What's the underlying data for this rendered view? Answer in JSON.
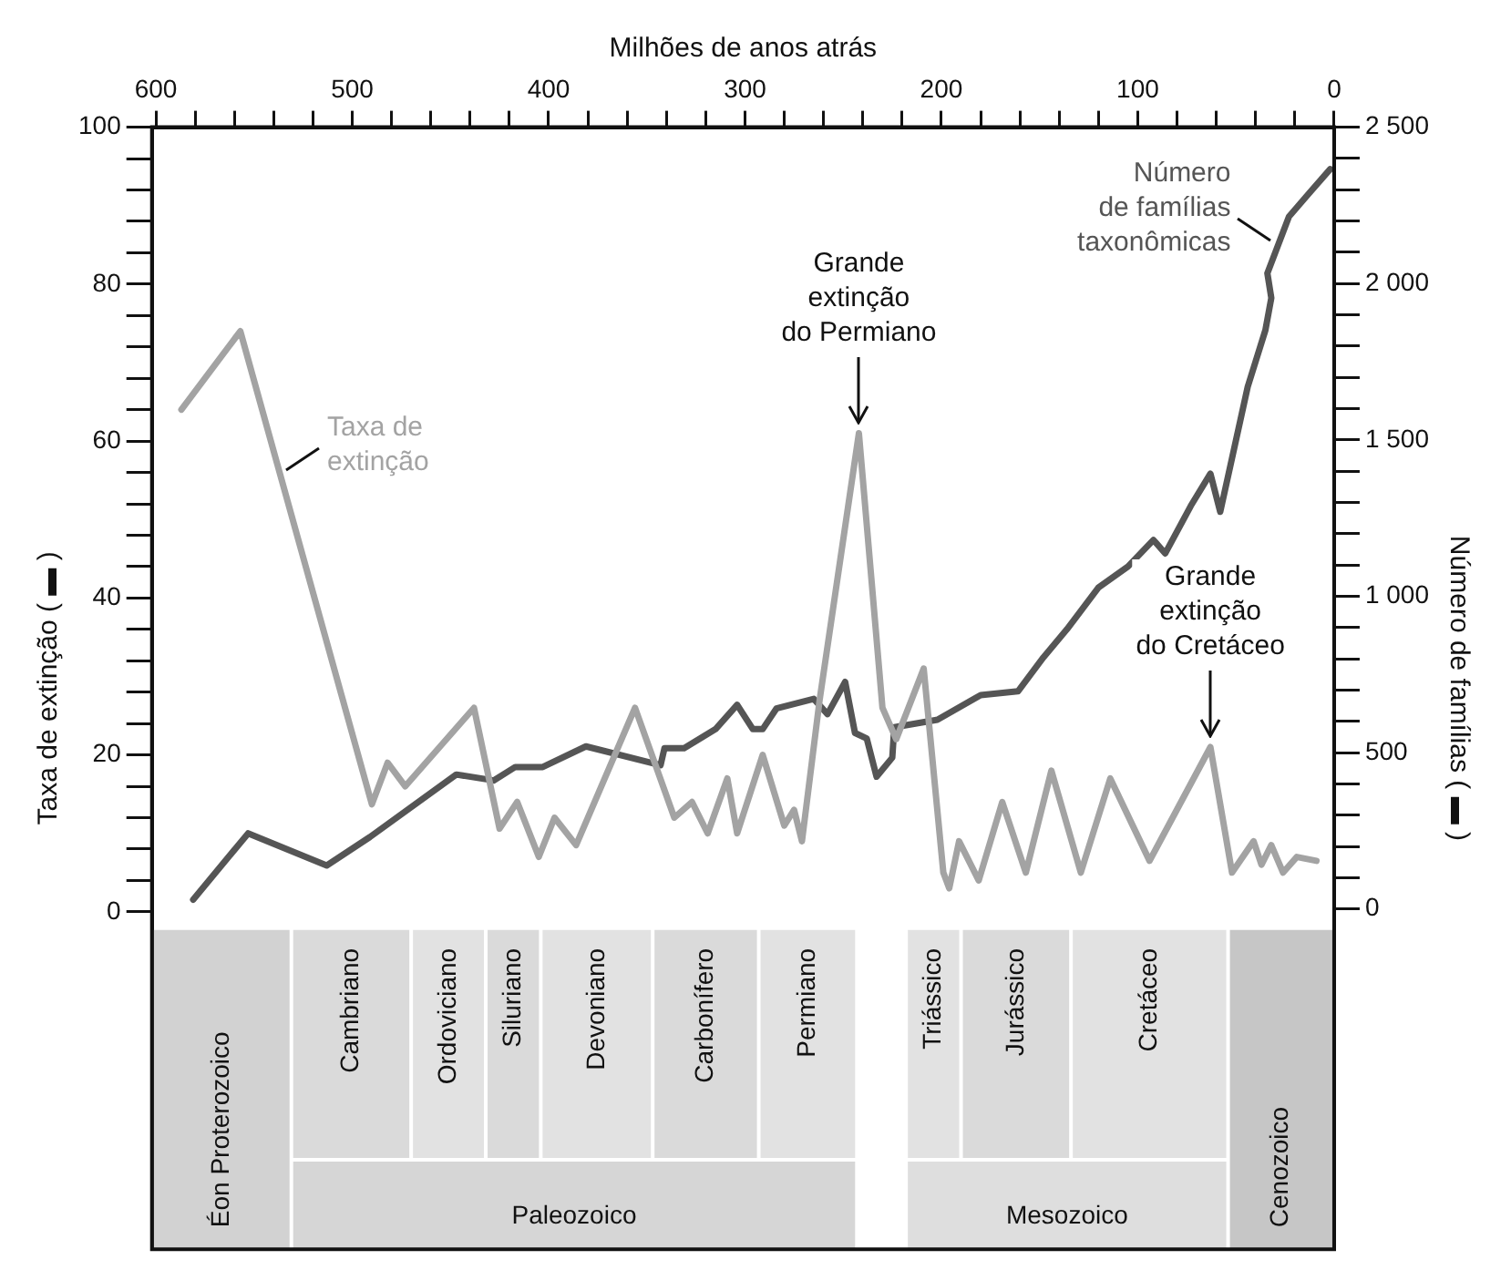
{
  "chart_data": {
    "type": "line",
    "xlabel": "Milhões de anos atrás",
    "ylabel": "Taxa de extinção ( ▬ )",
    "y2label": "Número de famílias ( ▬ )",
    "xlim": [
      602,
      0
    ],
    "xticks": [
      600,
      {
        "value": 580,
        "label": null
      },
      {
        "value": 560,
        "label": null
      },
      {
        "value": 540,
        "label": null
      },
      {
        "value": 520,
        "label": null
      },
      500,
      {
        "value": 480,
        "label": null
      },
      {
        "value": 460,
        "label": null
      },
      {
        "value": 440,
        "label": null
      },
      {
        "value": 420,
        "label": null
      },
      400,
      {
        "value": 380,
        "label": null
      },
      {
        "value": 360,
        "label": null
      },
      {
        "value": 340,
        "label": null
      },
      {
        "value": 320,
        "label": null
      },
      300,
      {
        "value": 280,
        "label": null
      },
      {
        "value": 260,
        "label": null
      },
      {
        "value": 240,
        "label": null
      },
      {
        "value": 220,
        "label": null
      },
      200,
      {
        "value": 180,
        "label": null
      },
      {
        "value": 160,
        "label": null
      },
      {
        "value": 140,
        "label": null
      },
      {
        "value": 120,
        "label": null
      },
      100,
      {
        "value": 80,
        "label": null
      },
      {
        "value": 60,
        "label": null
      },
      {
        "value": 40,
        "label": null
      },
      {
        "value": 20,
        "label": null
      },
      0
    ],
    "ylim": [
      -43,
      100
    ],
    "yticks": [
      0,
      {
        "value": 4,
        "label": null
      },
      {
        "value": 8,
        "label": null
      },
      {
        "value": 12,
        "label": null
      },
      {
        "value": 16,
        "label": null
      },
      20,
      {
        "value": 24,
        "label": null
      },
      {
        "value": 28,
        "label": null
      },
      {
        "value": 32,
        "label": null
      },
      {
        "value": 36,
        "label": null
      },
      40,
      {
        "value": 44,
        "label": null
      },
      {
        "value": 48,
        "label": null
      },
      {
        "value": 52,
        "label": null
      },
      {
        "value": 56,
        "label": null
      },
      60,
      {
        "value": 64,
        "label": null
      },
      {
        "value": 68,
        "label": null
      },
      {
        "value": 72,
        "label": null
      },
      {
        "value": 76,
        "label": null
      },
      80,
      {
        "value": 84,
        "label": null
      },
      {
        "value": 88,
        "label": null
      },
      {
        "value": 92,
        "label": null
      },
      {
        "value": 96,
        "label": null
      },
      100
    ],
    "y2lim": [
      -1088,
      2500
    ],
    "y2ticks": [
      0,
      {
        "value": 100,
        "label": null
      },
      {
        "value": 200,
        "label": null
      },
      {
        "value": 300,
        "label": null
      },
      {
        "value": 400,
        "label": null
      },
      500,
      {
        "value": 600,
        "label": null
      },
      {
        "value": 700,
        "label": null
      },
      {
        "value": 800,
        "label": null
      },
      {
        "value": 900,
        "label": null
      },
      {
        "value": 1000,
        "label": "1 000"
      },
      {
        "value": 1100,
        "label": null
      },
      {
        "value": 1200,
        "label": null
      },
      {
        "value": 1300,
        "label": null
      },
      {
        "value": 1400,
        "label": null
      },
      {
        "value": 1500,
        "label": "1 500"
      },
      {
        "value": 1600,
        "label": null
      },
      {
        "value": 1700,
        "label": null
      },
      {
        "value": 1800,
        "label": null
      },
      {
        "value": 1900,
        "label": null
      },
      {
        "value": 2000,
        "label": "2 000"
      },
      {
        "value": 2100,
        "label": null
      },
      {
        "value": 2200,
        "label": null
      },
      {
        "value": 2300,
        "label": null
      },
      {
        "value": 2400,
        "label": null
      },
      {
        "value": 2500,
        "label": "2 500"
      }
    ],
    "grid": false,
    "legend": false,
    "marker": "none",
    "line_style": "solid",
    "series": [
      {
        "name": "Taxa de extinção",
        "color": "#a3a3a3",
        "x": [
          587,
          557,
          490,
          482,
          473,
          438,
          425,
          416,
          405,
          397,
          386,
          356,
          336,
          327,
          319,
          309,
          304,
          291,
          280,
          275,
          271,
          262,
          242,
          230,
          223,
          209,
          199,
          196,
          191,
          181,
          169,
          157,
          144,
          129,
          114,
          94,
          63,
          52,
          41,
          37,
          32,
          26,
          19,
          9
        ],
        "values": [
          64,
          74,
          13.7,
          19,
          16,
          26,
          10.6,
          14,
          7,
          12,
          8.5,
          26,
          12,
          14,
          10,
          17,
          10,
          20,
          11,
          13,
          9,
          27,
          61,
          26,
          22,
          31,
          5,
          3,
          9,
          4,
          14,
          5,
          18,
          5,
          17,
          6.5,
          21,
          5,
          9,
          6,
          8.5,
          5,
          7,
          6.5
        ]
      },
      {
        "name": "Número de famílias taxonômicas",
        "color": "#555555",
        "axis": "y2",
        "x": [
          581,
          553,
          513,
          491,
          447,
          428,
          417,
          403,
          381,
          343,
          341,
          331,
          315,
          304,
          296,
          291,
          284,
          265,
          258,
          249,
          244,
          238,
          233,
          225,
          224,
          202,
          180,
          161,
          148,
          136,
          120,
          105,
          92,
          86,
          73,
          63,
          58,
          44,
          35,
          32,
          34,
          23,
          13,
          2
        ],
        "values": [
          30,
          242,
          139,
          230,
          430,
          411,
          454,
          454,
          520,
          460,
          514,
          514,
          575,
          653,
          575,
          575,
          641,
          672,
          623,
          726,
          563,
          545,
          423,
          484,
          581,
          605,
          684,
          696,
          805,
          895,
          1028,
          1095,
          1180,
          1137,
          1289,
          1392,
          1270,
          1670,
          1851,
          1954,
          2033,
          2214,
          2287,
          2366
        ]
      }
    ],
    "annotations": [
      {
        "text": "Grande extinção do Permiano",
        "x": 242,
        "y": 61
      },
      {
        "text": "Grande extinção do Cretáceo",
        "x": 63,
        "y": 21
      }
    ],
    "bands": [
      {
        "axis": "x",
        "from": 602,
        "to": 531,
        "label": "Éon Proterozoico",
        "color": "#d2d2d2"
      },
      {
        "axis": "x",
        "from": 531,
        "to": 470,
        "label": "Cambriano",
        "color": "#dadada"
      },
      {
        "axis": "x",
        "from": 470,
        "to": 432,
        "label": "Ordoviciano",
        "color": "#e2e2e2"
      },
      {
        "axis": "x",
        "from": 432,
        "to": 404,
        "label": "Siluriano",
        "color": "#dadada"
      },
      {
        "axis": "x",
        "from": 404,
        "to": 347,
        "label": "Devoniano",
        "color": "#e2e2e2"
      },
      {
        "axis": "x",
        "from": 347,
        "to": 293,
        "label": "Carbonífero",
        "color": "#dadada"
      },
      {
        "axis": "x",
        "from": 293,
        "to": 243,
        "label": "Permiano",
        "color": "#e2e2e2"
      },
      {
        "axis": "x",
        "from": 218,
        "to": 190,
        "label": "Triássico",
        "color": "#e2e2e2"
      },
      {
        "axis": "x",
        "from": 190,
        "to": 134,
        "label": "Jurássico",
        "color": "#dadada"
      },
      {
        "axis": "x",
        "from": 134,
        "to": 54,
        "label": "Cretáceo",
        "color": "#e2e2e2"
      },
      {
        "axis": "x",
        "from": 531,
        "to": 243,
        "label": "Paleozoico",
        "color": "#d6d6d6"
      },
      {
        "axis": "x",
        "from": 218,
        "to": 54,
        "label": "Mesozoico",
        "color": "#dedede"
      },
      {
        "axis": "x",
        "from": 54,
        "to": 0,
        "label": "Cenozoico",
        "color": "#c6c6c6"
      }
    ]
  }
}
